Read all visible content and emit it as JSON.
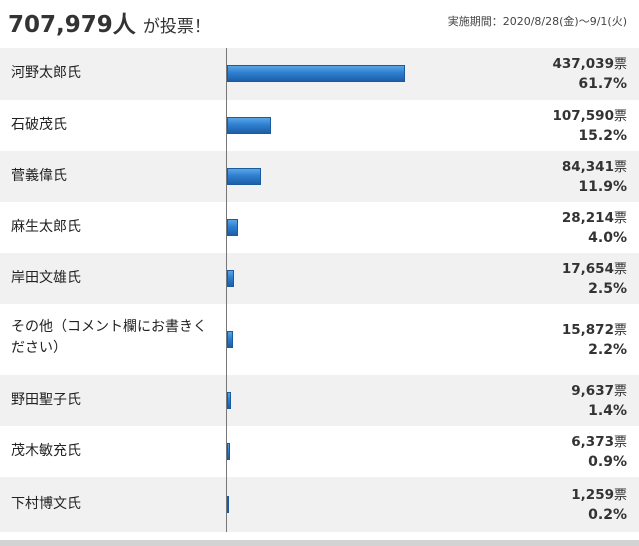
{
  "header": {
    "total_votes": "707,979人",
    "total_suffix": "が投票！",
    "period": "実施期間：2020/8/28(金)〜9/1(火)"
  },
  "chart_data": {
    "type": "bar",
    "orientation": "horizontal",
    "categories": [
      "河野太郎氏",
      "石破茂氏",
      "菅義偉氏",
      "麻生太郎氏",
      "岸田文雄氏",
      "その他（コメント欄にお書きください）",
      "野田聖子氏",
      "茂木敏充氏",
      "下村博文氏"
    ],
    "values": [
      437039,
      107590,
      84341,
      28214,
      17654,
      15872,
      9637,
      6373,
      1259
    ],
    "value_labels": [
      "437,039",
      "107,590",
      "84,341",
      "28,214",
      "17,654",
      "15,872",
      "9,637",
      "6,373",
      "1,259"
    ],
    "percent_labels": [
      "61.7%",
      "15.2%",
      "11.9%",
      "4.0%",
      "2.5%",
      "2.2%",
      "1.4%",
      "0.9%",
      "0.2%"
    ],
    "unit": "票",
    "bar_color": "#2f7fd1"
  }
}
